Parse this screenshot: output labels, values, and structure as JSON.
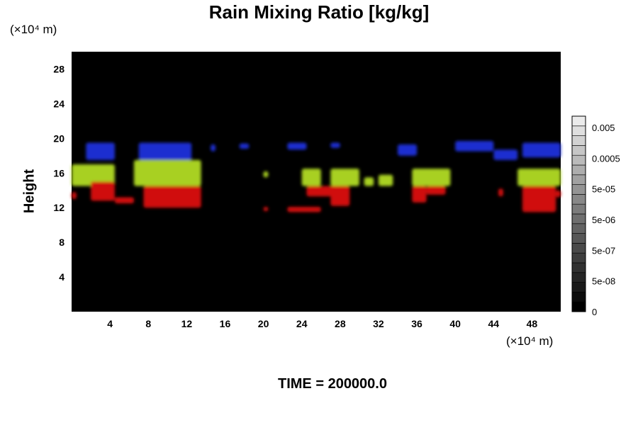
{
  "chart_data": {
    "type": "heatmap",
    "title": "Rain Mixing Ratio [kg/kg]",
    "ylabel": "Height",
    "x_unit": "(×10⁴ m)",
    "y_unit": "(×10⁴ m)",
    "footer": "TIME = 200000.0",
    "xlim": [
      0,
      51
    ],
    "ylim": [
      0,
      30
    ],
    "x_ticks": [
      "4",
      "8",
      "12",
      "16",
      "20",
      "24",
      "28",
      "32",
      "36",
      "40",
      "44",
      "48"
    ],
    "y_ticks": [
      "4",
      "8",
      "12",
      "16",
      "20",
      "24",
      "28"
    ],
    "background_color": "#000000",
    "layer_colors": {
      "upper": "#1f2fd0",
      "middle": "#a8d020",
      "lower": "#d01010"
    },
    "colorbar": {
      "labels": [
        "0.005",
        "0.0005",
        "5e-05",
        "5e-06",
        "5e-07",
        "5e-08",
        "0"
      ],
      "scale": "log"
    },
    "regions": [
      {
        "layer": "upper",
        "x": [
          1.5,
          4.5
        ],
        "y": [
          17.5,
          19.5
        ]
      },
      {
        "layer": "upper",
        "x": [
          7,
          12.5
        ],
        "y": [
          17.5,
          19.5
        ]
      },
      {
        "layer": "upper",
        "x": [
          14.5,
          15
        ],
        "y": [
          18.5,
          19.3
        ]
      },
      {
        "layer": "upper",
        "x": [
          17.5,
          18.5
        ],
        "y": [
          18.8,
          19.4
        ]
      },
      {
        "layer": "upper",
        "x": [
          22.5,
          24.5
        ],
        "y": [
          18.7,
          19.5
        ]
      },
      {
        "layer": "upper",
        "x": [
          27,
          28
        ],
        "y": [
          18.9,
          19.5
        ]
      },
      {
        "layer": "upper",
        "x": [
          34,
          36
        ],
        "y": [
          18,
          19.3
        ]
      },
      {
        "layer": "upper",
        "x": [
          40,
          44
        ],
        "y": [
          18.5,
          19.7
        ]
      },
      {
        "layer": "upper",
        "x": [
          44,
          46.5
        ],
        "y": [
          17.5,
          18.7
        ]
      },
      {
        "layer": "upper",
        "x": [
          47,
          51
        ],
        "y": [
          17.8,
          19.5
        ]
      },
      {
        "layer": "middle",
        "x": [
          0,
          4.5
        ],
        "y": [
          14.5,
          17
        ]
      },
      {
        "layer": "middle",
        "x": [
          6.5,
          13.5
        ],
        "y": [
          14.5,
          17.5
        ]
      },
      {
        "layer": "middle",
        "x": [
          20,
          20.5
        ],
        "y": [
          15.5,
          16.2
        ]
      },
      {
        "layer": "middle",
        "x": [
          24,
          26
        ],
        "y": [
          14.5,
          16.5
        ]
      },
      {
        "layer": "middle",
        "x": [
          27,
          30
        ],
        "y": [
          14.5,
          16.5
        ]
      },
      {
        "layer": "middle",
        "x": [
          30.5,
          31.5
        ],
        "y": [
          14.5,
          15.5
        ]
      },
      {
        "layer": "middle",
        "x": [
          32,
          33.5
        ],
        "y": [
          14.5,
          15.8
        ]
      },
      {
        "layer": "middle",
        "x": [
          35.5,
          39.5
        ],
        "y": [
          14.5,
          16.5
        ]
      },
      {
        "layer": "middle",
        "x": [
          46.5,
          51
        ],
        "y": [
          14.5,
          16.5
        ]
      },
      {
        "layer": "lower",
        "x": [
          0,
          0.5
        ],
        "y": [
          13,
          13.8
        ]
      },
      {
        "layer": "lower",
        "x": [
          2,
          4.5
        ],
        "y": [
          12.8,
          15
        ]
      },
      {
        "layer": "lower",
        "x": [
          4.5,
          6.5
        ],
        "y": [
          12.5,
          13.2
        ]
      },
      {
        "layer": "lower",
        "x": [
          7.5,
          13.5
        ],
        "y": [
          12,
          14.5
        ]
      },
      {
        "layer": "lower",
        "x": [
          20,
          20.5
        ],
        "y": [
          11.6,
          12.1
        ]
      },
      {
        "layer": "lower",
        "x": [
          22.5,
          26
        ],
        "y": [
          11.5,
          12.1
        ]
      },
      {
        "layer": "lower",
        "x": [
          24.5,
          28
        ],
        "y": [
          13.3,
          14.5
        ]
      },
      {
        "layer": "lower",
        "x": [
          27,
          29
        ],
        "y": [
          12.2,
          14.5
        ]
      },
      {
        "layer": "lower",
        "x": [
          35.5,
          37
        ],
        "y": [
          12.6,
          14.5
        ]
      },
      {
        "layer": "lower",
        "x": [
          37,
          39
        ],
        "y": [
          13.5,
          14.5
        ]
      },
      {
        "layer": "lower",
        "x": [
          44.5,
          45
        ],
        "y": [
          13.3,
          14.2
        ]
      },
      {
        "layer": "lower",
        "x": [
          47,
          50.5
        ],
        "y": [
          11.5,
          14.5
        ]
      },
      {
        "layer": "lower",
        "x": [
          50.5,
          51
        ],
        "y": [
          13.2,
          14
        ]
      }
    ]
  }
}
